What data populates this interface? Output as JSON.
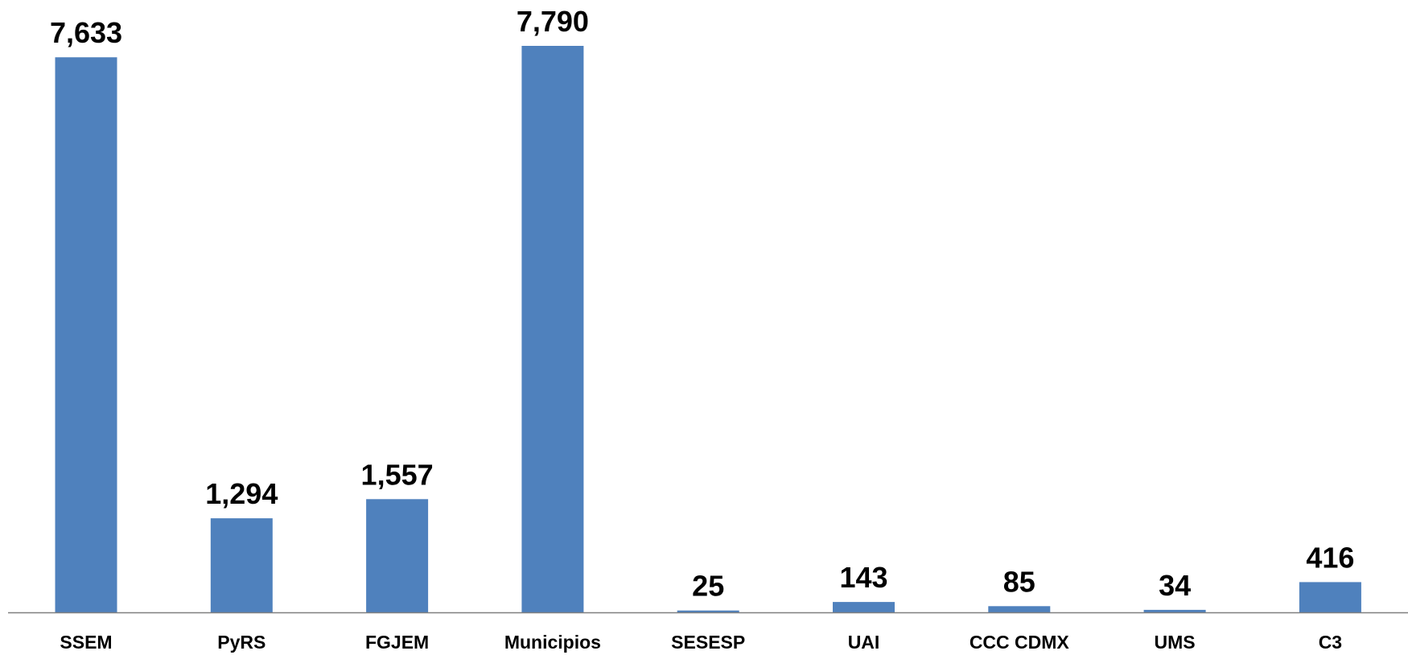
{
  "chart_data": {
    "type": "bar",
    "categories": [
      "SSEM",
      "PyRS",
      "FGJEM",
      "Municipios",
      "SESESP",
      "UAI",
      "CCC CDMX",
      "UMS",
      "C3"
    ],
    "values": [
      7633,
      1294,
      1557,
      7790,
      25,
      143,
      85,
      34,
      416
    ],
    "value_labels": [
      "7,633",
      "1,294",
      "1,557",
      "7,790",
      "25",
      "143",
      "85",
      "34",
      "416"
    ],
    "ylim": [
      0,
      8000
    ],
    "grid": false,
    "legend": "none",
    "colors": {
      "bar": "#4F81BD",
      "axis": "#808080",
      "text": "#000000"
    }
  }
}
